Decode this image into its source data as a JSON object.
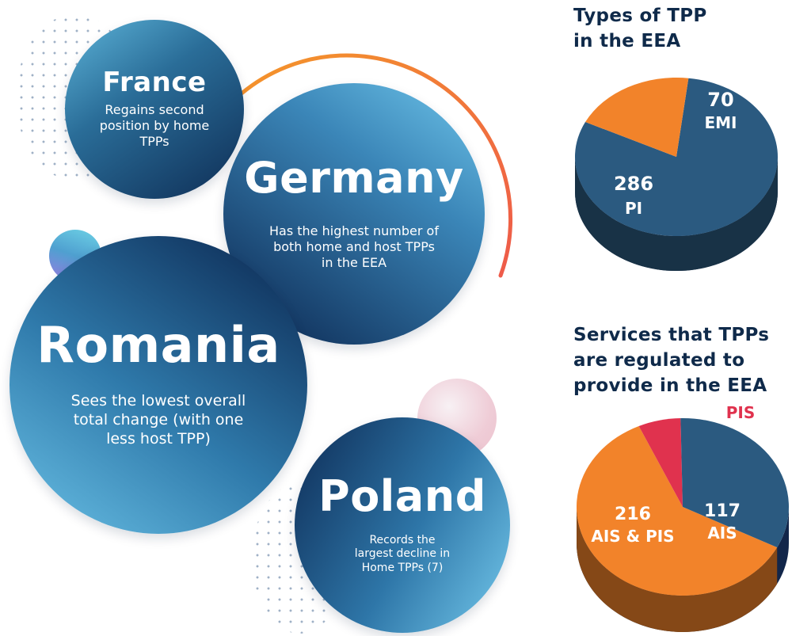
{
  "bubbles": {
    "france": {
      "title": "France",
      "desc": "Regains second position by home TPPs"
    },
    "germany": {
      "title": "Germany",
      "desc": "Has the highest number of both home and host TPPs in the EEA"
    },
    "romania": {
      "title": "Romania",
      "desc": "Sees the lowest overall total change (with one less host TPP)"
    },
    "poland": {
      "title": "Poland",
      "desc": "Records the largest decline in Home TPPs (7)"
    }
  },
  "colors": {
    "navy": "#2b5a80",
    "orange": "#f2832a",
    "red": "#e0324e",
    "heading": "#0f2a4a"
  },
  "chart_data": [
    {
      "type": "pie",
      "title": "Types of TPP in the EEA",
      "slices": [
        {
          "value": 286,
          "label": "PI",
          "color": "#2b5a80"
        },
        {
          "value": 70,
          "label": "EMI",
          "color": "#f2832a"
        }
      ]
    },
    {
      "type": "pie",
      "title": "Services that TPPs are regulated to provide in the EEA",
      "slices": [
        {
          "value": 216,
          "label": "AIS & PIS",
          "color": "#f2832a"
        },
        {
          "value": 23,
          "label": "PIS",
          "color": "#e0324e"
        },
        {
          "value": 117,
          "label": "AIS",
          "color": "#2b5a80"
        }
      ]
    }
  ]
}
